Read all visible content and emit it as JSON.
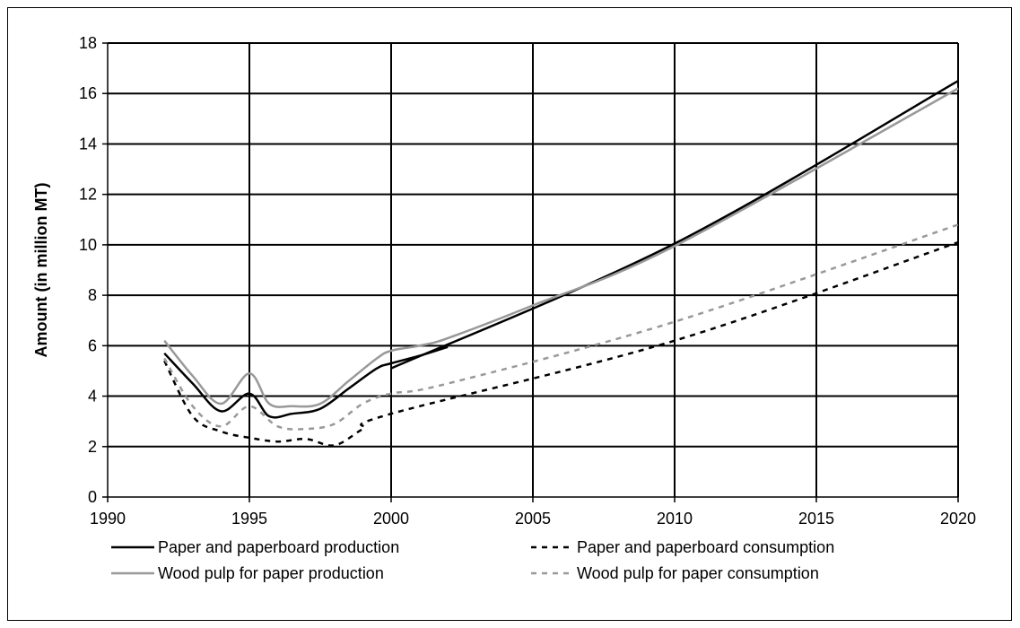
{
  "chart_data": {
    "type": "line",
    "title": "",
    "xlabel": "",
    "ylabel": "Amount (in million MT)",
    "xlim": [
      1990,
      2020
    ],
    "ylim": [
      0,
      18
    ],
    "xticks": [
      "1990",
      "1995",
      "2000",
      "2005",
      "2010",
      "2015",
      "2020"
    ],
    "yticks": [
      "0",
      "2",
      "4",
      "6",
      "8",
      "10",
      "12",
      "14",
      "16",
      "18"
    ],
    "grid": true,
    "legend_position": "bottom",
    "series": [
      {
        "name": "Paper and paperboard production",
        "color": "#000000",
        "dash": "solid",
        "points": [
          [
            1992,
            5.7
          ],
          [
            1993,
            4.5
          ],
          [
            1994,
            3.4
          ],
          [
            1995,
            4.1
          ],
          [
            1995.7,
            3.2
          ],
          [
            1996.5,
            3.3
          ],
          [
            1997.5,
            3.5
          ],
          [
            1998.5,
            4.3
          ],
          [
            1999.5,
            5.1
          ],
          [
            2000,
            5.3
          ],
          [
            2001,
            5.6
          ],
          [
            2002,
            5.95
          ]
        ]
      },
      {
        "name": "Paper and paperboard production",
        "color": "#000000",
        "dash": "solid",
        "points": [
          [
            2000,
            5.1
          ],
          [
            2010,
            10.05
          ],
          [
            2020,
            16.5
          ]
        ]
      },
      {
        "name": "Paper and paperboard consumption",
        "color": "#000000",
        "dash": "dashed",
        "points": [
          [
            1992,
            5.4
          ],
          [
            1993,
            3.2
          ],
          [
            1994,
            2.6
          ],
          [
            1995,
            2.35
          ],
          [
            1996,
            2.2
          ],
          [
            1997,
            2.3
          ],
          [
            1998,
            2.05
          ],
          [
            1999,
            2.7
          ],
          [
            2000,
            3.3
          ],
          [
            2010,
            6.2
          ],
          [
            2020,
            10.1
          ]
        ]
      },
      {
        "name": "Wood pulp for paper production",
        "color": "#999999",
        "dash": "solid",
        "points": [
          [
            1992,
            6.2
          ],
          [
            1993,
            4.8
          ],
          [
            1994,
            3.7
          ],
          [
            1995,
            4.9
          ],
          [
            1995.7,
            3.7
          ],
          [
            1996.5,
            3.6
          ],
          [
            1997.5,
            3.7
          ],
          [
            1998.5,
            4.6
          ],
          [
            1999.5,
            5.5
          ],
          [
            2000,
            5.8
          ],
          [
            2001,
            6.0
          ],
          [
            2002,
            6.3
          ],
          [
            2005,
            7.6
          ],
          [
            2010,
            9.95
          ],
          [
            2020,
            16.2
          ]
        ]
      },
      {
        "name": "Wood pulp for paper consumption",
        "color": "#999999",
        "dash": "dashed",
        "points": [
          [
            1992,
            5.5
          ],
          [
            1993,
            3.6
          ],
          [
            1994,
            2.8
          ],
          [
            1995,
            3.6
          ],
          [
            1996,
            2.8
          ],
          [
            1997,
            2.7
          ],
          [
            1998,
            2.9
          ],
          [
            1999,
            3.7
          ],
          [
            2000,
            4.1
          ],
          [
            2002,
            4.5
          ],
          [
            2010,
            6.95
          ],
          [
            2020,
            10.8
          ]
        ]
      }
    ],
    "legend": [
      {
        "label": "Paper and paperboard production",
        "color": "#000000",
        "dash": "solid"
      },
      {
        "label": "Paper and paperboard consumption",
        "color": "#000000",
        "dash": "dashed"
      },
      {
        "label": "Wood pulp for paper production",
        "color": "#999999",
        "dash": "solid"
      },
      {
        "label": "Wood pulp for paper consumption",
        "color": "#999999",
        "dash": "dashed"
      }
    ]
  }
}
